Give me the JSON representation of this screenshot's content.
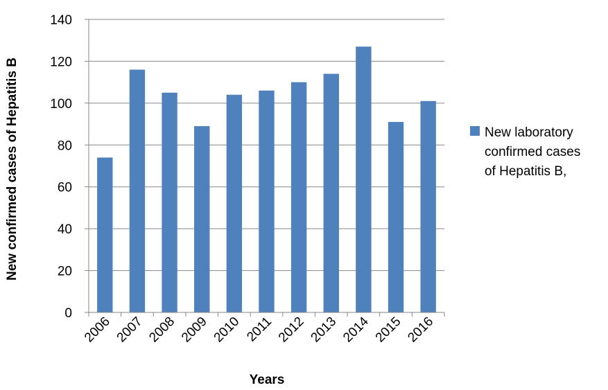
{
  "chart_data": {
    "type": "bar",
    "categories": [
      "2006",
      "2007",
      "2008",
      "2009",
      "2010",
      "2011",
      "2012",
      "2013",
      "2014",
      "2015",
      "2016"
    ],
    "series": [
      {
        "name": "New laboratory confirmed cases of Hepatitis B,",
        "legend_lines": [
          "New laboratory",
          "confirmed cases",
          "of Hepatitis B,"
        ],
        "values": [
          74,
          116,
          105,
          89,
          104,
          106,
          110,
          114,
          127,
          91,
          101
        ],
        "color": "#4f81bd"
      }
    ],
    "xlabel": "Years",
    "ylabel": "New  confirmed cases of Hepatitis B",
    "ylim": [
      0,
      140
    ],
    "yticks": [
      "0",
      "20",
      "40",
      "60",
      "80",
      "100",
      "120",
      "140"
    ],
    "grid": true,
    "legend_position": "right",
    "grid_color": "#868686",
    "axis_color": "#868686"
  }
}
